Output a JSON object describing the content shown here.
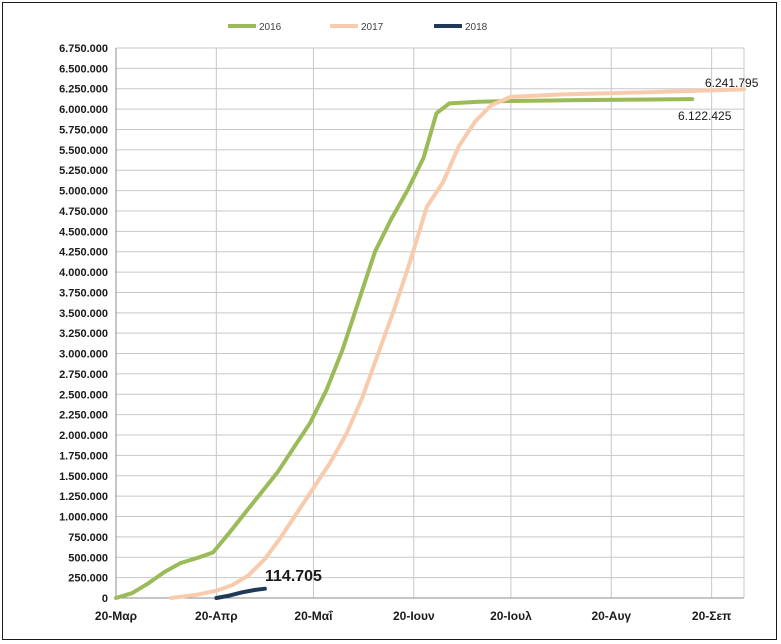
{
  "chart_data": {
    "type": "line",
    "ylim": [
      0,
      6750000
    ],
    "yticks": [
      0,
      250000,
      500000,
      750000,
      1000000,
      1250000,
      1500000,
      1750000,
      2000000,
      2250000,
      2500000,
      2750000,
      3000000,
      3250000,
      3500000,
      3750000,
      4000000,
      4250000,
      4500000,
      4750000,
      5000000,
      5250000,
      5500000,
      5750000,
      6000000,
      6250000,
      6500000,
      6750000
    ],
    "ytick_labels": [
      "0",
      "250.000",
      "500.000",
      "750.000",
      "1.000.000",
      "1.250.000",
      "1.500.000",
      "1.750.000",
      "2.000.000",
      "2.250.000",
      "2.500.000",
      "2.750.000",
      "3.000.000",
      "3.250.000",
      "3.500.000",
      "3.750.000",
      "4.000.000",
      "4.250.000",
      "4.500.000",
      "4.750.000",
      "5.000.000",
      "5.250.000",
      "5.500.000",
      "5.750.000",
      "6.000.000",
      "6.250.000",
      "6.500.000",
      "6.750.000"
    ],
    "xlim": [
      "2018-03-20",
      "2018-09-30"
    ],
    "xticks": [
      "2018-03-20",
      "2018-04-20",
      "2018-05-20",
      "2018-06-20",
      "2018-07-20",
      "2018-08-20",
      "2018-09-20"
    ],
    "xtick_labels": [
      "20-Μαρ",
      "20-Απρ",
      "20-Μαΐ",
      "20-Ιουν",
      "20-Ιουλ",
      "20-Αυγ",
      "20-Σεπ"
    ],
    "grid": true,
    "legend_position": "top-center",
    "series": [
      {
        "name": "2016",
        "color": "#9bbb59",
        "points": [
          [
            "2018-03-20",
            0
          ],
          [
            "2018-03-25",
            60000
          ],
          [
            "2018-03-30",
            180000
          ],
          [
            "2018-04-04",
            320000
          ],
          [
            "2018-04-09",
            430000
          ],
          [
            "2018-04-14",
            490000
          ],
          [
            "2018-04-19",
            560000
          ],
          [
            "2018-04-24",
            800000
          ],
          [
            "2018-04-29",
            1050000
          ],
          [
            "2018-05-04",
            1300000
          ],
          [
            "2018-05-09",
            1550000
          ],
          [
            "2018-05-14",
            1850000
          ],
          [
            "2018-05-19",
            2150000
          ],
          [
            "2018-05-24",
            2550000
          ],
          [
            "2018-05-29",
            3050000
          ],
          [
            "2018-06-03",
            3650000
          ],
          [
            "2018-06-08",
            4250000
          ],
          [
            "2018-06-13",
            4650000
          ],
          [
            "2018-06-18",
            5000000
          ],
          [
            "2018-06-23",
            5400000
          ],
          [
            "2018-06-27",
            5950000
          ],
          [
            "2018-07-01",
            6070000
          ],
          [
            "2018-07-10",
            6090000
          ],
          [
            "2018-07-20",
            6100000
          ],
          [
            "2018-08-10",
            6110000
          ],
          [
            "2018-09-14",
            6122425
          ]
        ]
      },
      {
        "name": "2017",
        "color": "#f8cbad",
        "points": [
          [
            "2018-04-06",
            0
          ],
          [
            "2018-04-14",
            40000
          ],
          [
            "2018-04-20",
            90000
          ],
          [
            "2018-04-25",
            160000
          ],
          [
            "2018-04-30",
            280000
          ],
          [
            "2018-05-05",
            480000
          ],
          [
            "2018-05-10",
            750000
          ],
          [
            "2018-05-15",
            1050000
          ],
          [
            "2018-05-20",
            1350000
          ],
          [
            "2018-05-25",
            1650000
          ],
          [
            "2018-05-30",
            2000000
          ],
          [
            "2018-06-04",
            2450000
          ],
          [
            "2018-06-09",
            3000000
          ],
          [
            "2018-06-14",
            3550000
          ],
          [
            "2018-06-19",
            4150000
          ],
          [
            "2018-06-24",
            4800000
          ],
          [
            "2018-06-29",
            5100000
          ],
          [
            "2018-07-04",
            5550000
          ],
          [
            "2018-07-09",
            5850000
          ],
          [
            "2018-07-14",
            6050000
          ],
          [
            "2018-07-20",
            6150000
          ],
          [
            "2018-08-05",
            6180000
          ],
          [
            "2018-08-25",
            6200000
          ],
          [
            "2018-09-30",
            6241795
          ]
        ]
      },
      {
        "name": "2018",
        "color": "#1f3a57",
        "points": [
          [
            "2018-04-20",
            0
          ],
          [
            "2018-04-24",
            30000
          ],
          [
            "2018-04-28",
            70000
          ],
          [
            "2018-05-02",
            100000
          ],
          [
            "2018-05-05",
            114705
          ]
        ]
      }
    ],
    "annotations": [
      "6.241.795",
      "6.122.425",
      "114.705"
    ]
  }
}
